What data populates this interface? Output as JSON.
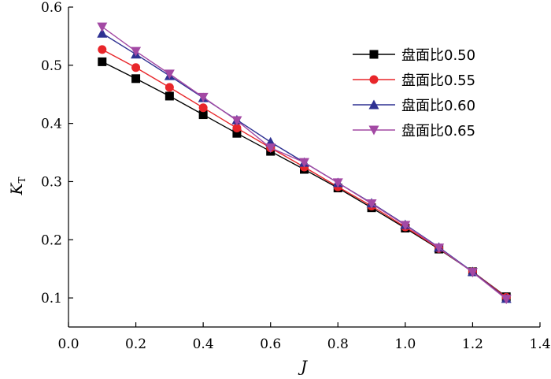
{
  "chart_data": {
    "type": "line",
    "xlabel": "J",
    "ylabel_main": "K",
    "ylabel_sub": "T",
    "xlim": [
      0.0,
      1.4
    ],
    "ylim": [
      0.05,
      0.6
    ],
    "x_ticks": [
      0.0,
      0.2,
      0.4,
      0.6,
      0.8,
      1.0,
      1.2,
      1.4
    ],
    "x_tick_labels": [
      "0.0",
      "0.2",
      "0.4",
      "0.6",
      "0.8",
      "1.0",
      "1.2",
      "1.4"
    ],
    "y_ticks": [
      0.1,
      0.2,
      0.3,
      0.4,
      0.5,
      0.6
    ],
    "y_tick_labels": [
      "0.1",
      "0.2",
      "0.3",
      "0.4",
      "0.5",
      "0.6"
    ],
    "grid": false,
    "legend_position": "top-right",
    "x": [
      0.1,
      0.2,
      0.3,
      0.4,
      0.5,
      0.6,
      0.7,
      0.8,
      0.9,
      1.0,
      1.1,
      1.2,
      1.3
    ],
    "series": [
      {
        "name": "盘面比0.50",
        "color": "#000000",
        "marker": "square",
        "values": [
          0.506,
          0.477,
          0.447,
          0.415,
          0.383,
          0.352,
          0.321,
          0.289,
          0.255,
          0.22,
          0.184,
          0.145,
          0.102
        ]
      },
      {
        "name": "盘面比0.55",
        "color": "#e8262a",
        "marker": "circle",
        "values": [
          0.527,
          0.496,
          0.462,
          0.427,
          0.392,
          0.358,
          0.325,
          0.291,
          0.258,
          0.222,
          0.185,
          0.145,
          0.101
        ]
      },
      {
        "name": "盘面比0.60",
        "color": "#2e3192",
        "marker": "triangle-up",
        "values": [
          0.555,
          0.519,
          0.482,
          0.444,
          0.406,
          0.368,
          0.333,
          0.298,
          0.263,
          0.226,
          0.187,
          0.145,
          0.099
        ]
      },
      {
        "name": "盘面比0.65",
        "color": "#a349a4",
        "marker": "triangle-down",
        "values": [
          0.566,
          0.524,
          0.485,
          0.445,
          0.405,
          0.358,
          0.333,
          0.298,
          0.262,
          0.225,
          0.186,
          0.144,
          0.098
        ]
      }
    ]
  }
}
